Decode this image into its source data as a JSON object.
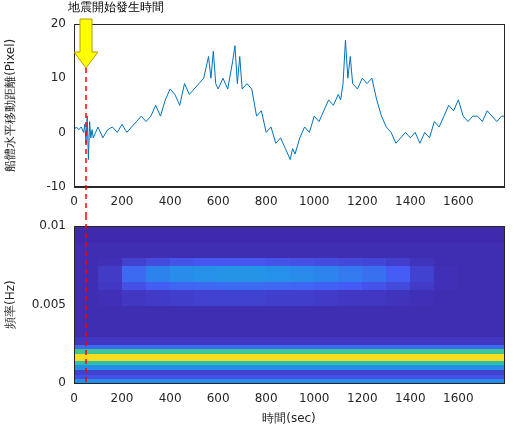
{
  "chart_data": [
    {
      "type": "line",
      "ylabel": "船體水平移動距離(Pixel)",
      "color": "#0072bd",
      "grid": false,
      "x": [
        0,
        10,
        20,
        30,
        40,
        45,
        50,
        55,
        60,
        65,
        70,
        75,
        80,
        90,
        100,
        120,
        140,
        160,
        180,
        200,
        220,
        240,
        260,
        280,
        300,
        320,
        340,
        360,
        380,
        400,
        420,
        440,
        460,
        480,
        500,
        520,
        540,
        560,
        570,
        580,
        590,
        600,
        620,
        640,
        660,
        670,
        680,
        690,
        700,
        720,
        740,
        760,
        780,
        800,
        820,
        840,
        860,
        880,
        900,
        910,
        920,
        940,
        960,
        980,
        1000,
        1020,
        1040,
        1060,
        1080,
        1100,
        1110,
        1120,
        1130,
        1140,
        1150,
        1160,
        1180,
        1200,
        1220,
        1240,
        1260,
        1280,
        1300,
        1320,
        1340,
        1360,
        1380,
        1400,
        1420,
        1440,
        1460,
        1480,
        1500,
        1520,
        1540,
        1560,
        1580,
        1600,
        1620,
        1640,
        1660,
        1680,
        1700,
        1720,
        1740,
        1760,
        1780,
        1790
      ],
      "values": [
        0.5,
        1,
        0.5,
        1,
        0,
        1.5,
        -2,
        3,
        -5,
        2,
        -1,
        0.5,
        -1,
        0,
        1,
        -1,
        0.5,
        1,
        0,
        1.5,
        0,
        1,
        2,
        3,
        2,
        3,
        5,
        3,
        6,
        8,
        7,
        5,
        9,
        7,
        8,
        9,
        10,
        14,
        10,
        15,
        9,
        8,
        10,
        8,
        13,
        16,
        9,
        14,
        8,
        9,
        8,
        3,
        4,
        0,
        1,
        -2,
        -1,
        -3,
        -5,
        -3,
        -4,
        -1,
        1,
        0,
        3,
        2,
        4,
        6,
        5,
        7,
        6,
        9,
        17,
        10,
        14,
        9,
        8,
        10,
        9,
        10,
        6,
        3,
        1,
        0,
        -2,
        -1,
        0,
        -1,
        0,
        -2,
        0,
        -1,
        2,
        1,
        3,
        5,
        4,
        6,
        3,
        2,
        3,
        3,
        2,
        4,
        3,
        2,
        3,
        3
      ],
      "xlim": [
        0,
        1790
      ],
      "xticks": [
        0,
        200,
        400,
        600,
        800,
        1000,
        1200,
        1400,
        1600
      ],
      "ylim": [
        -10,
        20
      ],
      "yticks": [
        -10,
        0,
        10,
        20
      ],
      "event": {
        "text": "地震開始發生時間",
        "x": 50
      }
    },
    {
      "type": "heatmap",
      "xlabel": "時間(sec)",
      "ylabel": "頻率(Hz)",
      "grid": false,
      "xlim": [
        0,
        1790
      ],
      "xticks": [
        0,
        200,
        400,
        600,
        800,
        1000,
        1200,
        1400,
        1600
      ],
      "ylim": [
        0,
        0.01
      ],
      "yticks": [
        0,
        0.005,
        0.01
      ],
      "xbins": [
        0,
        100,
        200,
        300,
        400,
        500,
        600,
        700,
        800,
        900,
        1000,
        1100,
        1200,
        1300,
        1400,
        1500,
        1600,
        1700,
        1790
      ],
      "ybins": [
        0,
        0.0003,
        0.0006,
        0.0009,
        0.0012,
        0.0015,
        0.0019,
        0.0022,
        0.0025,
        0.003,
        0.004,
        0.005,
        0.006,
        0.0065,
        0.007,
        0.0075,
        0.008,
        0.009,
        0.01
      ],
      "zlim": [
        0,
        1
      ],
      "cells": [
        [
          0.3,
          0.3,
          0.3,
          0.3,
          0.3,
          0.3,
          0.3,
          0.3,
          0.3,
          0.3,
          0.3,
          0.3,
          0.3,
          0.3,
          0.3,
          0.3,
          0.3,
          0.3
        ],
        [
          0.12,
          0.12,
          0.12,
          0.12,
          0.12,
          0.12,
          0.12,
          0.12,
          0.12,
          0.12,
          0.12,
          0.12,
          0.12,
          0.12,
          0.12,
          0.12,
          0.12,
          0.12
        ],
        [
          0.08,
          0.08,
          0.08,
          0.08,
          0.08,
          0.08,
          0.08,
          0.08,
          0.08,
          0.08,
          0.08,
          0.08,
          0.08,
          0.08,
          0.08,
          0.08,
          0.08,
          0.08
        ],
        [
          0.3,
          0.3,
          0.3,
          0.3,
          0.3,
          0.3,
          0.3,
          0.3,
          0.3,
          0.3,
          0.3,
          0.3,
          0.3,
          0.3,
          0.3,
          0.3,
          0.3,
          0.3
        ],
        [
          0.55,
          0.55,
          0.55,
          0.55,
          0.55,
          0.55,
          0.55,
          0.55,
          0.55,
          0.55,
          0.55,
          0.55,
          0.55,
          0.55,
          0.55,
          0.55,
          0.55,
          0.55
        ],
        [
          0.95,
          0.95,
          0.95,
          0.95,
          0.95,
          0.95,
          0.95,
          0.95,
          0.95,
          0.95,
          0.95,
          0.95,
          0.95,
          0.95,
          0.95,
          0.95,
          0.95,
          0.95
        ],
        [
          0.6,
          0.6,
          0.6,
          0.6,
          0.6,
          0.6,
          0.6,
          0.6,
          0.6,
          0.6,
          0.6,
          0.6,
          0.6,
          0.6,
          0.6,
          0.6,
          0.6,
          0.6
        ],
        [
          0.2,
          0.2,
          0.2,
          0.2,
          0.2,
          0.2,
          0.2,
          0.2,
          0.2,
          0.2,
          0.2,
          0.2,
          0.2,
          0.2,
          0.2,
          0.2,
          0.2,
          0.2
        ],
        [
          0.05,
          0.05,
          0.05,
          0.05,
          0.05,
          0.05,
          0.05,
          0.05,
          0.05,
          0.05,
          0.05,
          0.05,
          0.05,
          0.05,
          0.05,
          0.05,
          0.05,
          0.05
        ],
        [
          0.02,
          0.02,
          0.02,
          0.02,
          0.02,
          0.02,
          0.02,
          0.02,
          0.02,
          0.02,
          0.02,
          0.02,
          0.02,
          0.02,
          0.02,
          0.02,
          0.02,
          0.02
        ],
        [
          0.02,
          0.02,
          0.02,
          0.02,
          0.02,
          0.02,
          0.02,
          0.02,
          0.02,
          0.02,
          0.02,
          0.02,
          0.02,
          0.02,
          0.02,
          0.02,
          0.02,
          0.02
        ],
        [
          0.02,
          0.03,
          0.05,
          0.06,
          0.07,
          0.08,
          0.08,
          0.08,
          0.07,
          0.07,
          0.06,
          0.05,
          0.05,
          0.04,
          0.03,
          0.02,
          0.02,
          0.02
        ],
        [
          0.02,
          0.05,
          0.12,
          0.16,
          0.18,
          0.19,
          0.2,
          0.2,
          0.19,
          0.18,
          0.17,
          0.15,
          0.13,
          0.1,
          0.06,
          0.03,
          0.02,
          0.02
        ],
        [
          0.02,
          0.06,
          0.2,
          0.27,
          0.3,
          0.32,
          0.33,
          0.33,
          0.32,
          0.3,
          0.28,
          0.25,
          0.22,
          0.16,
          0.08,
          0.03,
          0.02,
          0.02
        ],
        [
          0.02,
          0.06,
          0.2,
          0.27,
          0.3,
          0.32,
          0.33,
          0.33,
          0.31,
          0.29,
          0.27,
          0.24,
          0.21,
          0.15,
          0.08,
          0.03,
          0.02,
          0.02
        ],
        [
          0.02,
          0.03,
          0.08,
          0.11,
          0.13,
          0.14,
          0.14,
          0.14,
          0.13,
          0.12,
          0.11,
          0.1,
          0.09,
          0.07,
          0.04,
          0.02,
          0.02,
          0.02
        ],
        [
          0.02,
          0.02,
          0.02,
          0.02,
          0.02,
          0.02,
          0.02,
          0.02,
          0.02,
          0.02,
          0.02,
          0.02,
          0.02,
          0.02,
          0.02,
          0.02,
          0.02,
          0.02
        ],
        [
          0.01,
          0.01,
          0.01,
          0.01,
          0.01,
          0.01,
          0.01,
          0.01,
          0.01,
          0.01,
          0.01,
          0.01,
          0.01,
          0.01,
          0.01,
          0.01,
          0.01,
          0.01
        ]
      ],
      "event": {
        "x": 50
      }
    }
  ]
}
